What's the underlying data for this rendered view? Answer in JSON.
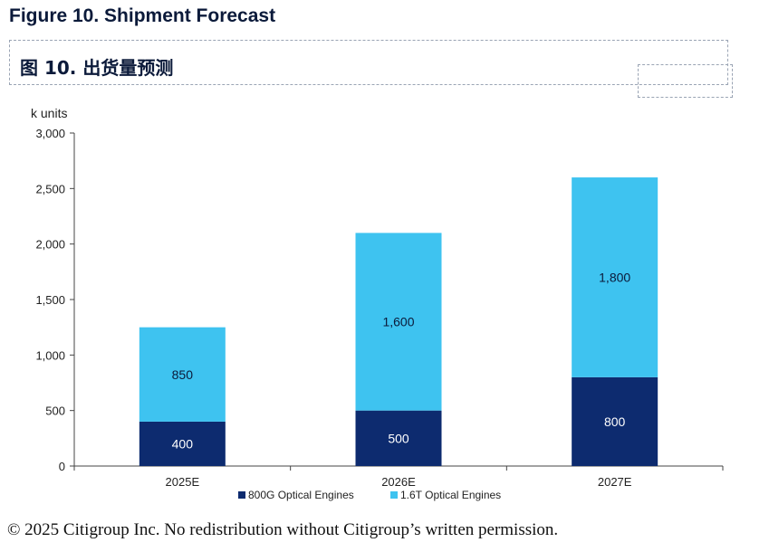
{
  "figure_title": "Figure 10. Shipment Forecast",
  "subtitle_cn": "图 10. 出货量预测",
  "copyright": "© 2025 Citigroup Inc. No redistribution without Citigroup’s written permission.",
  "colors": {
    "series_800g": "#0d2b6f",
    "series_1_6t": "#3ec3f0",
    "axis": "#444444"
  },
  "chart_data": {
    "type": "bar",
    "stacked": true,
    "title": "Shipment Forecast",
    "ylabel": "k units",
    "xlabel": "",
    "ylim": [
      0,
      3000
    ],
    "yticks": [
      "0",
      "500",
      "1,000",
      "1,500",
      "2,000",
      "2,500",
      "3,000"
    ],
    "categories": [
      "2025E",
      "2026E",
      "2027E"
    ],
    "series": [
      {
        "name": "800G Optical Engines",
        "values": [
          400,
          500,
          800
        ],
        "labels": [
          "400",
          "500",
          "800"
        ]
      },
      {
        "name": "1.6T Optical Engines",
        "values": [
          850,
          1600,
          1800
        ],
        "labels": [
          "850",
          "1,600",
          "1,800"
        ]
      }
    ],
    "legend_position": "bottom"
  }
}
